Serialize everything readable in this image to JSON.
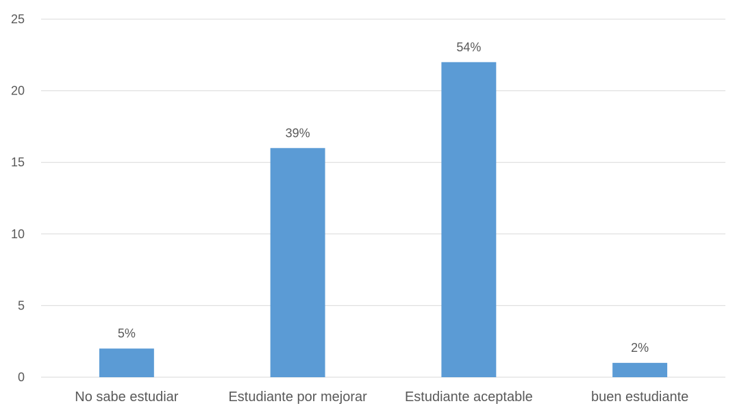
{
  "chart_data": {
    "type": "bar",
    "title": "",
    "xlabel": "",
    "ylabel": "",
    "categories": [
      "No sabe estudiar",
      "Estudiante por mejorar",
      "Estudiante aceptable",
      "buen estudiante"
    ],
    "values": [
      2,
      16,
      22,
      1
    ],
    "data_labels": [
      "5%",
      "39%",
      "54%",
      "2%"
    ],
    "ylim": [
      0,
      25
    ],
    "yticks": [
      0,
      5,
      10,
      15,
      20,
      25
    ],
    "grid": true,
    "legend": "none",
    "bar_color": "#5b9bd5"
  }
}
